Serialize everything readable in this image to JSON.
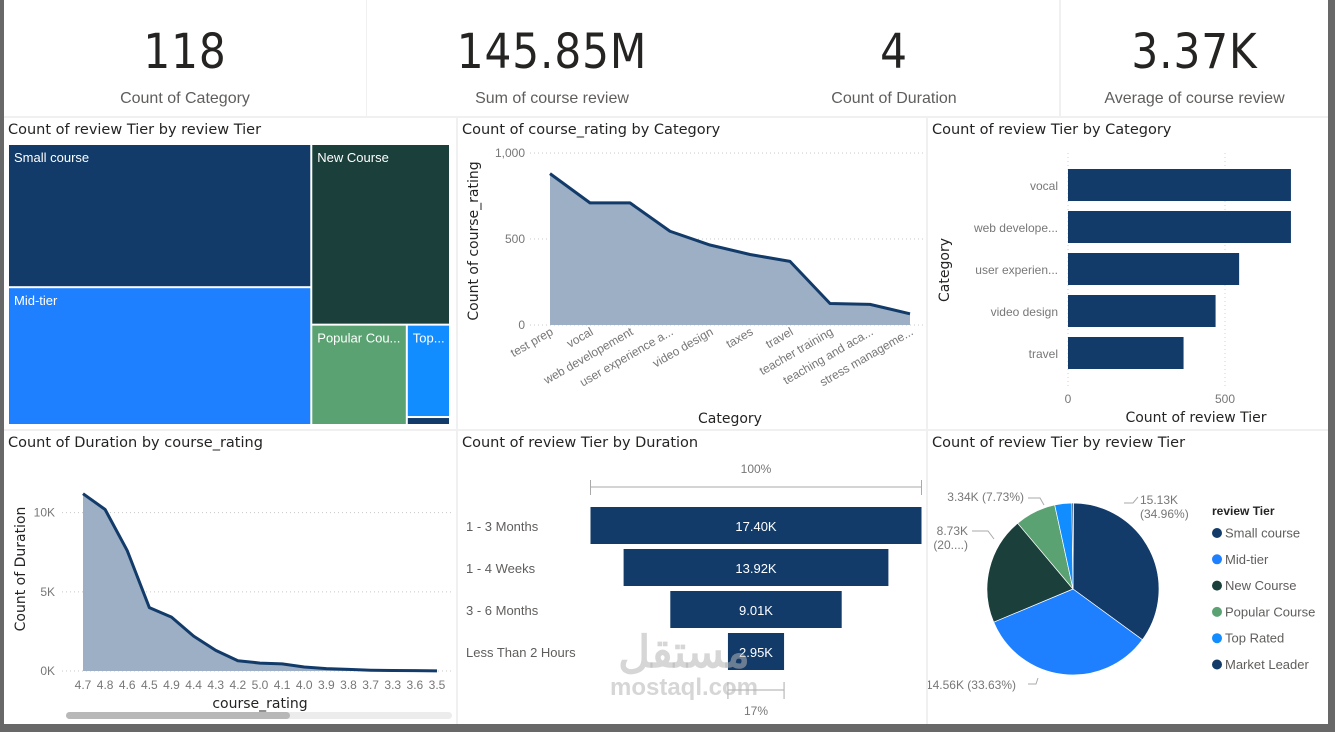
{
  "kpis": [
    {
      "value": "118",
      "label": "Count of Category"
    },
    {
      "value": "145.85M",
      "label": "Sum of course review"
    },
    {
      "value": "4",
      "label": "Count of Duration"
    },
    {
      "value": "3.37K",
      "label": "Average of course review"
    }
  ],
  "colors": {
    "navy": "#123B6A",
    "blue": "#1F80FF",
    "dark_green": "#1B403B",
    "green": "#5BA272",
    "light_blue": "#118DFF",
    "area_fill": "#9CAFC5",
    "line": "#123B6A"
  },
  "watermark": {
    "arabic": "مستقل",
    "latin": "mostaql.com"
  },
  "chart_data": [
    {
      "id": "treemap",
      "type": "treemap",
      "title": "Count of review Tier by review Tier",
      "labels": [
        "Small course",
        "Mid-tier",
        "New Course",
        "Popular Cou...",
        "Top...",
        ""
      ],
      "full_labels": [
        "Small course",
        "Mid-tier",
        "New Course",
        "Popular Course",
        "Top Rated",
        "Market Leader"
      ],
      "values": [
        15130,
        14560,
        8730,
        3340,
        1390,
        120
      ]
    },
    {
      "id": "area-category",
      "type": "area",
      "title": "Count of course_rating by Category",
      "xlabel": "Category",
      "ylabel": "Count of course_rating",
      "categories": [
        "test prep",
        "vocal",
        "web developement",
        "user experience a...",
        "video design",
        "taxes",
        "travel",
        "teacher training",
        "teaching and aca...",
        "stress manageme..."
      ],
      "values": [
        880,
        710,
        710,
        545,
        465,
        410,
        370,
        125,
        120,
        65
      ],
      "yticks": [
        "0",
        "500",
        "1,000"
      ],
      "ylim": [
        0,
        1000
      ],
      "grid": true
    },
    {
      "id": "bar-category",
      "type": "bar",
      "orientation": "horizontal",
      "title": "Count of review Tier by Category",
      "xlabel": "Count of review Tier",
      "ylabel": "Category",
      "categories": [
        "vocal",
        "web develope...",
        "user experien...",
        "video design",
        "travel"
      ],
      "values": [
        710,
        710,
        545,
        470,
        368
      ],
      "xticks": [
        "0",
        "500"
      ],
      "xlim": [
        0,
        760
      ],
      "grid": true
    },
    {
      "id": "area-rating",
      "type": "area",
      "title": "Count of Duration by course_rating",
      "xlabel": "course_rating",
      "ylabel": "Count of Duration",
      "categories": [
        "4.7",
        "4.8",
        "4.6",
        "4.5",
        "4.9",
        "4.4",
        "4.3",
        "4.2",
        "5.0",
        "4.1",
        "4.0",
        "3.9",
        "3.8",
        "3.7",
        "3.3",
        "3.6",
        "3.5"
      ],
      "values": [
        11200,
        10200,
        7600,
        4000,
        3400,
        2200,
        1300,
        650,
        500,
        450,
        250,
        150,
        100,
        50,
        30,
        20,
        10
      ],
      "yticks": [
        "0K",
        "5K",
        "10K"
      ],
      "ylim": [
        0,
        12000
      ],
      "grid": true,
      "scrollbar_position": 0.58
    },
    {
      "id": "funnel",
      "type": "funnel",
      "title": "Count of review Tier by Duration",
      "categories": [
        "1 - 3 Months",
        "1 - 4 Weeks",
        "3 - 6 Months",
        "Less Than 2 Hours"
      ],
      "values": [
        17400,
        13920,
        9010,
        2950
      ],
      "value_labels": [
        "17.40K",
        "13.92K",
        "9.01K",
        "2.95K"
      ],
      "top_percent_label": "100%",
      "bottom_percent_label": "17%"
    },
    {
      "id": "pie",
      "type": "pie",
      "title": "Count of review Tier by review Tier",
      "legend_title": "review Tier",
      "legend_position": "right",
      "labels": [
        "Small course",
        "Mid-tier",
        "New Course",
        "Popular Course",
        "Top Rated",
        "Market Leader"
      ],
      "values": [
        15130,
        14560,
        8730,
        3340,
        1390,
        120
      ],
      "data_labels": [
        "15.13K (34.96%)",
        "14.56K (33.63%)",
        "8.73K (20....)",
        "3.34K (7.73%)",
        "",
        ""
      ]
    }
  ]
}
